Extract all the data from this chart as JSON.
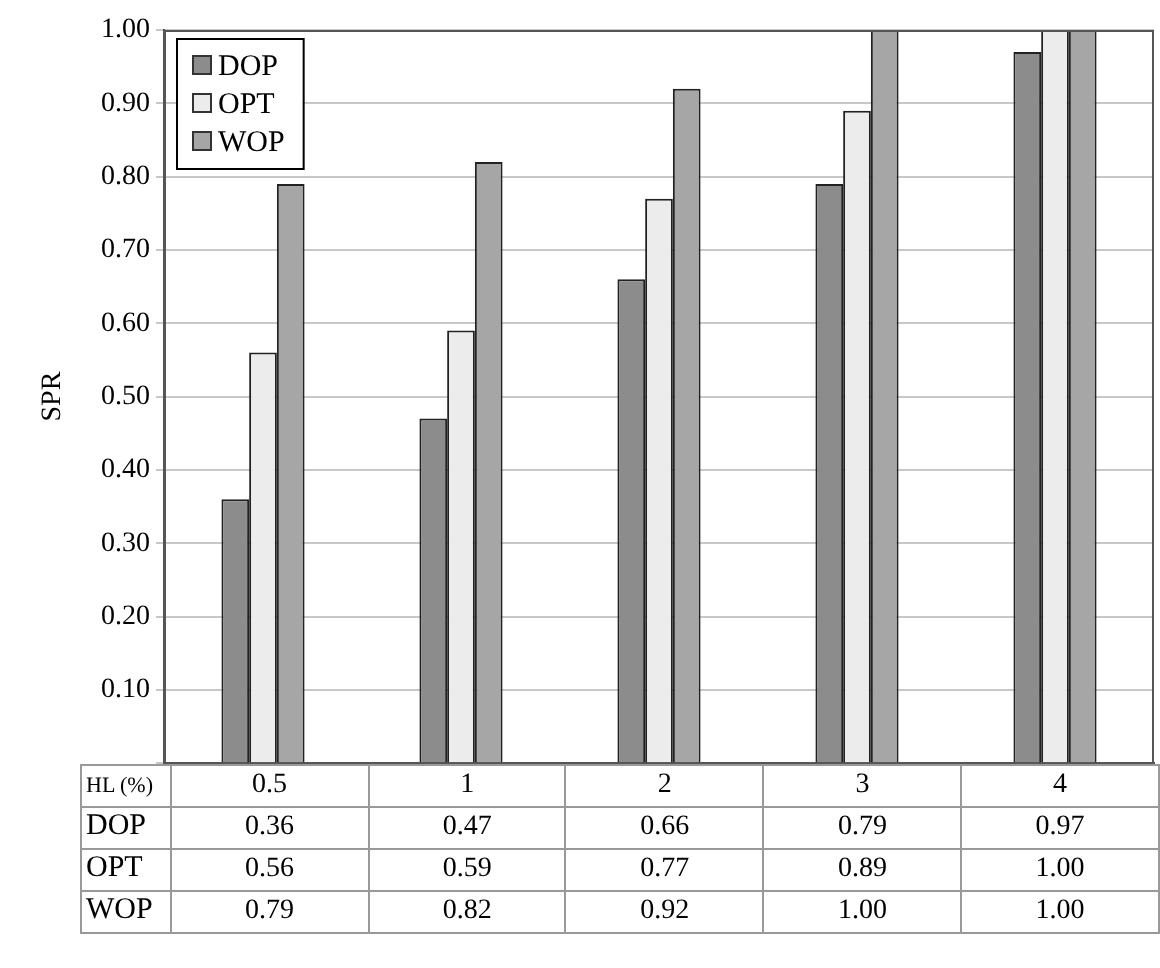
{
  "chart_data": {
    "type": "bar",
    "xlabel": "HL (%)",
    "ylabel": "SPR",
    "categories": [
      "0.5",
      "1",
      "2",
      "3",
      "4"
    ],
    "series": [
      {
        "name": "DOP",
        "color": "#8c8c8c",
        "values": [
          0.36,
          0.47,
          0.66,
          0.79,
          0.97
        ],
        "value_labels": [
          "0.36",
          "0.47",
          "0.66",
          "0.79",
          "0.97"
        ]
      },
      {
        "name": "OPT",
        "color": "#ececec",
        "values": [
          0.56,
          0.59,
          0.77,
          0.89,
          1.0
        ],
        "value_labels": [
          "0.56",
          "0.59",
          "0.77",
          "0.89",
          "1.00"
        ]
      },
      {
        "name": "WOP",
        "color": "#a6a6a6",
        "values": [
          0.79,
          0.82,
          0.92,
          1.0,
          1.0
        ],
        "value_labels": [
          "0.79",
          "0.82",
          "0.92",
          "1.00",
          "1.00"
        ]
      }
    ],
    "ylim": [
      0,
      1
    ],
    "yticks": [
      {
        "value": 0,
        "label": null
      },
      {
        "value": 0.1,
        "label": "0.10"
      },
      {
        "value": 0.2,
        "label": "0.20"
      },
      {
        "value": 0.3,
        "label": "0.30"
      },
      {
        "value": 0.4,
        "label": "0.40"
      },
      {
        "value": 0.5,
        "label": "0.50"
      },
      {
        "value": 0.6,
        "label": "0.60"
      },
      {
        "value": 0.7,
        "label": "0.70"
      },
      {
        "value": 0.8,
        "label": "0.80"
      },
      {
        "value": 0.9,
        "label": "0.90"
      },
      {
        "value": 1,
        "label": "1.00"
      }
    ],
    "grid": "y",
    "legend": "top left"
  }
}
